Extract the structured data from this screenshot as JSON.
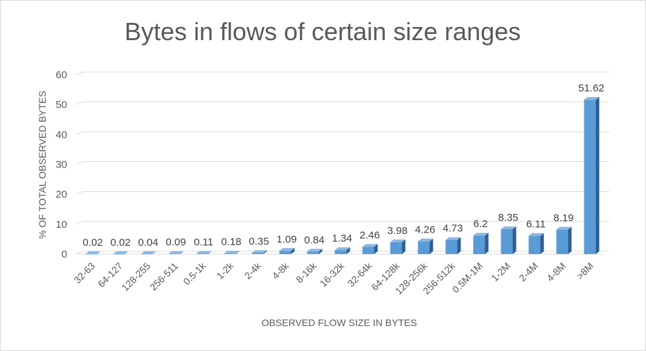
{
  "chart_data": {
    "type": "bar",
    "title": "Bytes in flows of certain size ranges",
    "xlabel": "OBSERVED FLOW SIZE IN BYTES",
    "ylabel": "% OF TOTAL OBSERVED BYTES",
    "ylim": [
      0,
      60
    ],
    "yticks": [
      0,
      10,
      20,
      30,
      40,
      50,
      60
    ],
    "grid": true,
    "categories": [
      "32-63",
      "64-127",
      "128-255",
      "256-511",
      "0.5-1k",
      "1-2k",
      "2-4k",
      "4-8k",
      "8-16k",
      "16-32k",
      "32-64k",
      "64-128k",
      "128-256k",
      "256-512k",
      "0.5M-1M",
      "1-2M",
      "2-4M",
      "4-8M",
      ">8M"
    ],
    "values": [
      0.02,
      0.02,
      0.04,
      0.09,
      0.11,
      0.18,
      0.35,
      1.09,
      0.84,
      1.34,
      2.46,
      3.98,
      4.26,
      4.73,
      6.2,
      8.35,
      6.11,
      8.19,
      51.62
    ],
    "data_labels": [
      "0.02",
      "0.02",
      "0.04",
      "0.09",
      "0.11",
      "0.18",
      "0.35",
      "1.09",
      "0.84",
      "1.34",
      "2.46",
      "3.98",
      "4.26",
      "4.73",
      "6.2",
      "8.35",
      "6.11",
      "8.19",
      "51.62"
    ],
    "colors": {
      "bar_front": "#5b9bd5",
      "bar_side": "#2e5f8f",
      "bar_top": "#8cb8e3",
      "grid": "#d9d9d9",
      "text": "#595959",
      "title": "#595959"
    }
  }
}
